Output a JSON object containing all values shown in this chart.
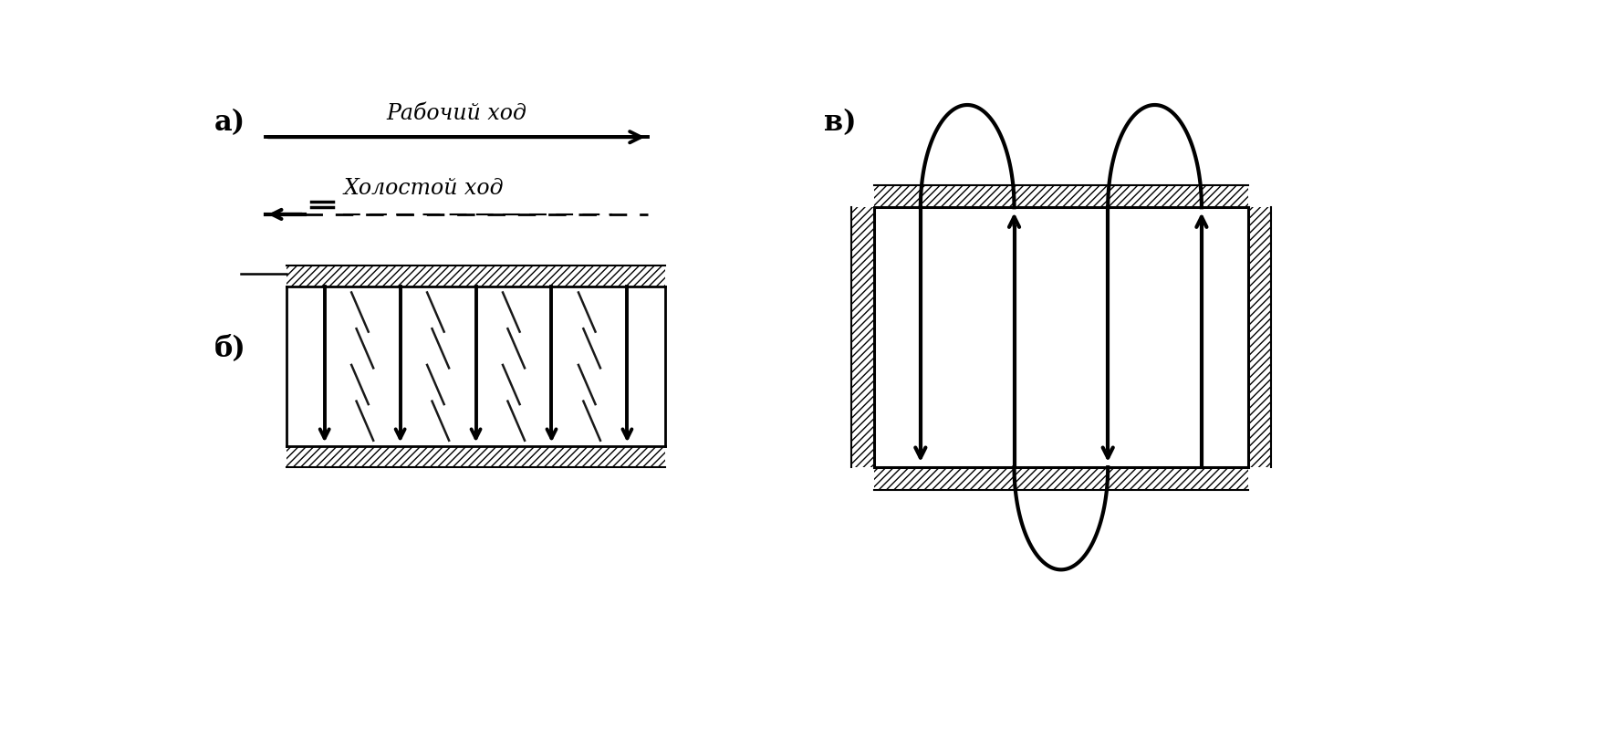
{
  "bg_color": "#ffffff",
  "label_a": "а)",
  "label_b": "б)",
  "label_v": "в)",
  "text_rabochiy": "Рабочий ход",
  "text_holostoy": "Холостой ход",
  "line_color": "#000000"
}
